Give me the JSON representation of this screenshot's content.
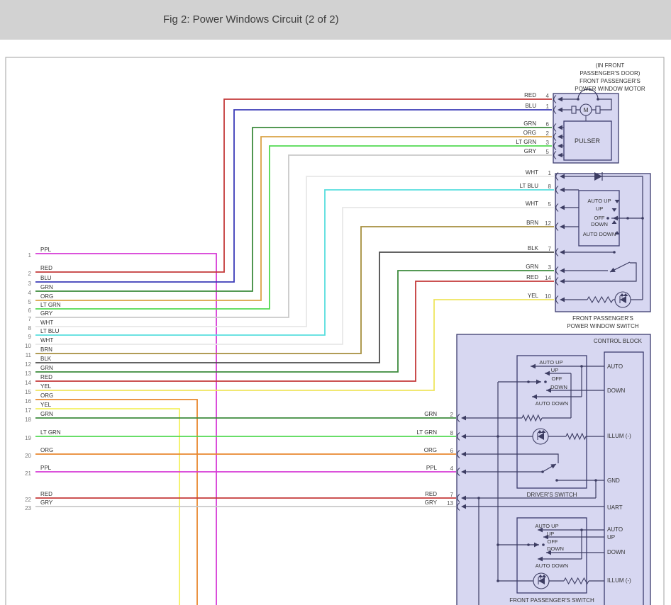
{
  "header": {
    "title": "Fig 2: Power Windows Circuit (2 of 2)"
  },
  "colors": {
    "header_bar": "#d2d2d2",
    "box_fill": "#d7d7f1",
    "box_border": "#3c3c6e",
    "circuit_line": "#3d3d63",
    "border": "#a0a0a0"
  },
  "left_wires": [
    {
      "num": "1",
      "color": "PPL",
      "hex": "#d63ad6"
    },
    {
      "num": "2",
      "color": "RED",
      "hex": "#c43a3a"
    },
    {
      "num": "3",
      "color": "BLU",
      "hex": "#3b3bb8"
    },
    {
      "num": "4",
      "color": "GRN",
      "hex": "#3d8b3d"
    },
    {
      "num": "5",
      "color": "ORG",
      "hex": "#daa246"
    },
    {
      "num": "6",
      "color": "LT GRN",
      "hex": "#52d952"
    },
    {
      "num": "7",
      "color": "GRY",
      "hex": "#c9c9c9"
    },
    {
      "num": "8",
      "color": "WHT",
      "hex": "#e8e8e8"
    },
    {
      "num": "9",
      "color": "LT BLU",
      "hex": "#58dede"
    },
    {
      "num": "10",
      "color": "WHT",
      "hex": "#e8e8e8"
    },
    {
      "num": "11",
      "color": "BRN",
      "hex": "#a68f3e"
    },
    {
      "num": "12",
      "color": "BLK",
      "hex": "#4d4d4d"
    },
    {
      "num": "13",
      "color": "GRN",
      "hex": "#3d8b3d"
    },
    {
      "num": "14",
      "color": "RED",
      "hex": "#c43a3a"
    },
    {
      "num": "15",
      "color": "YEL",
      "hex": "#efe55e"
    },
    {
      "num": "16",
      "color": "ORG",
      "hex": "#e8872e"
    },
    {
      "num": "17",
      "color": "YEL",
      "hex": "#f4f060"
    },
    {
      "num": "18",
      "color": "GRN",
      "hex": "#3d8b3d"
    },
    {
      "num": "19",
      "color": "LT GRN",
      "hex": "#52d952"
    },
    {
      "num": "20",
      "color": "ORG",
      "hex": "#e8872e"
    },
    {
      "num": "21",
      "color": "PPL",
      "hex": "#d63ad6"
    },
    {
      "num": "22",
      "color": "RED",
      "hex": "#c43a3a"
    },
    {
      "num": "23",
      "color": "GRY",
      "hex": "#c9c9c9"
    }
  ],
  "motor": {
    "title_lines": [
      "(IN FRONT",
      "PASSENGER'S DOOR)",
      "FRONT PASSENGER'S",
      "POWER WINDOW MOTOR"
    ],
    "motor_letter": "M",
    "pulser_label": "PULSER",
    "pins": [
      {
        "color": "RED",
        "pin": "4"
      },
      {
        "color": "BLU",
        "pin": "1"
      },
      {
        "color": "GRN",
        "pin": "6"
      },
      {
        "color": "ORG",
        "pin": "2"
      },
      {
        "color": "LT GRN",
        "pin": "3"
      },
      {
        "color": "GRY",
        "pin": "5"
      }
    ]
  },
  "pass_switch": {
    "label_lines": [
      "FRONT PASSENGER'S",
      "POWER WINDOW SWITCH"
    ],
    "positions": [
      "AUTO UP",
      "UP",
      "OFF",
      "DOWN",
      "AUTO DOWN"
    ],
    "pins": [
      {
        "color": "WHT",
        "pin": "1"
      },
      {
        "color": "LT BLU",
        "pin": "8"
      },
      {
        "color": "WHT",
        "pin": "5"
      },
      {
        "color": "BRN",
        "pin": "12"
      },
      {
        "color": "BLK",
        "pin": "7"
      },
      {
        "color": "GRN",
        "pin": "3"
      },
      {
        "color": "RED",
        "pin": "14"
      },
      {
        "color": "YEL",
        "pin": "10"
      }
    ]
  },
  "control_block": {
    "label": "CONTROL BLOCK",
    "pins": [
      {
        "color": "GRN",
        "pin": "2"
      },
      {
        "color": "LT GRN",
        "pin": "8"
      },
      {
        "color": "ORG",
        "pin": "6"
      },
      {
        "color": "PPL",
        "pin": "4"
      },
      {
        "color": "RED",
        "pin": "7"
      },
      {
        "color": "GRY",
        "pin": "13"
      }
    ],
    "driver_switch": {
      "label": "DRIVER'S SWITCH",
      "positions": [
        "AUTO UP",
        "UP",
        "OFF",
        "DOWN",
        "AUTO DOWN"
      ],
      "terminals": [
        "AUTO",
        "DOWN",
        "ILLUM (-)",
        "GND",
        "UART"
      ]
    },
    "passenger_switch": {
      "label": "FRONT PASSENGER'S SWITCH",
      "positions": [
        "AUTO UP",
        "UP",
        "OFF",
        "DOWN",
        "AUTO DOWN"
      ],
      "terminals": [
        "AUTO",
        "UP",
        "DOWN",
        "ILLUM (-)"
      ]
    }
  }
}
